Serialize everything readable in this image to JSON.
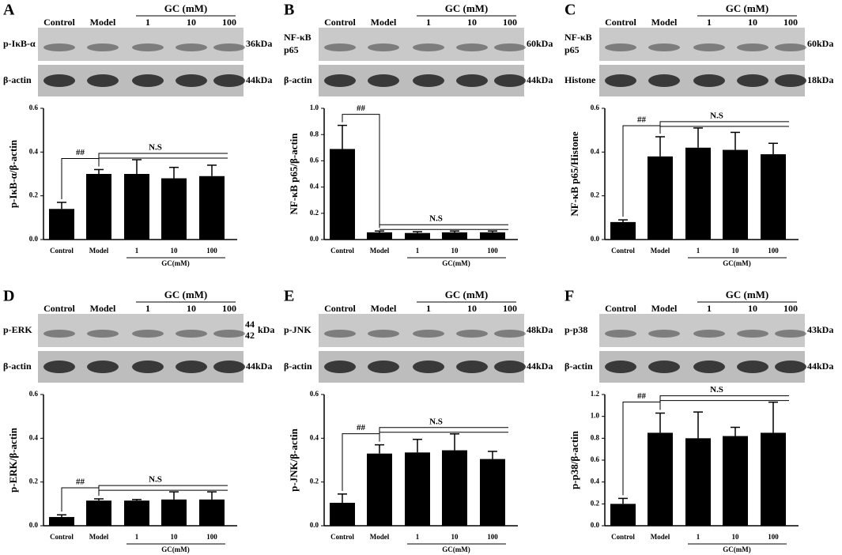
{
  "chart_data": [
    {
      "type": "bar",
      "panel": "A",
      "ylabel": "p-IκB-α/β-actin",
      "blot": {
        "lanes": [
          "Control",
          "Model",
          "1",
          "10",
          "100"
        ],
        "group_label": "GC (mM)",
        "rows": [
          {
            "protein": [
              "p-IκB-α"
            ],
            "size": [
              "36kDa"
            ]
          },
          {
            "protein": [
              "β-actin"
            ],
            "size": [
              "44kDa"
            ]
          }
        ]
      },
      "categories": [
        "Control",
        "Model",
        "1",
        "10",
        "100"
      ],
      "group_label": "GC(mM)",
      "values": [
        0.14,
        0.3,
        0.3,
        0.28,
        0.29
      ],
      "errors": [
        0.03,
        0.02,
        0.065,
        0.05,
        0.05
      ],
      "color": "#000000",
      "ylim": [
        0,
        0.6
      ],
      "yticks": [
        {
          "value": 0,
          "label": "0.0"
        },
        0.2,
        0.4,
        0.6
      ],
      "annotations": [
        "##",
        "N.S"
      ]
    },
    {
      "type": "bar",
      "panel": "B",
      "ylabel": "NF-κB p65/β-actin",
      "blot": {
        "lanes": [
          "Control",
          "Model",
          "1",
          "10",
          "100"
        ],
        "group_label": "GC (mM)",
        "rows": [
          {
            "protein": [
              "NF-κB",
              "p65"
            ],
            "size": [
              "60kDa"
            ]
          },
          {
            "protein": [
              "β-actin"
            ],
            "size": [
              "44kDa"
            ]
          }
        ]
      },
      "categories": [
        "Control",
        "Model",
        "1",
        "10",
        "100"
      ],
      "group_label": "GC(mM)",
      "values": [
        0.69,
        0.055,
        0.05,
        0.055,
        0.055
      ],
      "errors": [
        0.18,
        0.01,
        0.01,
        0.01,
        0.01
      ],
      "color": "#000000",
      "ylim": [
        0,
        1.0
      ],
      "yticks": [
        {
          "value": 0,
          "label": "0.0"
        },
        0.2,
        0.4,
        0.6,
        0.8,
        {
          "value": 1,
          "label": "1.0"
        }
      ],
      "annotations": [
        "##",
        "N.S"
      ]
    },
    {
      "type": "bar",
      "panel": "C",
      "ylabel": "NF-κB p65/Histone",
      "blot": {
        "lanes": [
          "Control",
          "Model",
          "1",
          "10",
          "100"
        ],
        "group_label": "GC (mM)",
        "rows": [
          {
            "protein": [
              "NF-κB",
              "p65"
            ],
            "size": [
              "60kDa"
            ]
          },
          {
            "protein": [
              "Histone"
            ],
            "size": [
              "18kDa"
            ]
          }
        ]
      },
      "categories": [
        "Control",
        "Model",
        "1",
        "10",
        "100"
      ],
      "group_label": "GC(mM)",
      "values": [
        0.08,
        0.38,
        0.42,
        0.41,
        0.39
      ],
      "errors": [
        0.01,
        0.09,
        0.09,
        0.08,
        0.05
      ],
      "color": "#000000",
      "ylim": [
        0,
        0.6
      ],
      "yticks": [
        {
          "value": 0,
          "label": "0.0"
        },
        0.2,
        0.4,
        0.6
      ],
      "annotations": [
        "##",
        "N.S"
      ]
    },
    {
      "type": "bar",
      "panel": "D",
      "ylabel": "p-ERK/β-actin",
      "blot": {
        "lanes": [
          "Control",
          "Model",
          "1",
          "10",
          "100"
        ],
        "group_label": "GC (mM)",
        "rows": [
          {
            "protein": [
              "p-ERK"
            ],
            "size": [
              "44",
              "42",
              "kDa"
            ]
          },
          {
            "protein": [
              "β-actin"
            ],
            "size": [
              "44kDa"
            ]
          }
        ]
      },
      "categories": [
        "Control",
        "Model",
        "1",
        "10",
        "100"
      ],
      "group_label": "GC(mM)",
      "values": [
        0.04,
        0.115,
        0.115,
        0.12,
        0.12
      ],
      "errors": [
        0.01,
        0.008,
        0.005,
        0.035,
        0.035
      ],
      "color": "#000000",
      "ylim": [
        0,
        0.6
      ],
      "yticks": [
        {
          "value": 0,
          "label": "0.0"
        },
        0.2,
        0.4,
        0.6
      ],
      "annotations": [
        "##",
        "N.S"
      ]
    },
    {
      "type": "bar",
      "panel": "E",
      "ylabel": "p-JNK/β-actin",
      "blot": {
        "lanes": [
          "Control",
          "Model",
          "1",
          "10",
          "100"
        ],
        "group_label": "GC (mM)",
        "rows": [
          {
            "protein": [
              "p-JNK"
            ],
            "size": [
              "48kDa"
            ]
          },
          {
            "protein": [
              "β-actin"
            ],
            "size": [
              "44kDa"
            ]
          }
        ]
      },
      "categories": [
        "Control",
        "Model",
        "1",
        "10",
        "100"
      ],
      "group_label": "GC(mM)",
      "values": [
        0.105,
        0.33,
        0.335,
        0.345,
        0.305
      ],
      "errors": [
        0.04,
        0.04,
        0.06,
        0.075,
        0.035
      ],
      "color": "#000000",
      "ylim": [
        0,
        0.6
      ],
      "yticks": [
        {
          "value": 0,
          "label": "0.0"
        },
        0.2,
        0.4,
        0.6
      ],
      "annotations": [
        "##",
        "N.S"
      ]
    },
    {
      "type": "bar",
      "panel": "F",
      "ylabel": "p-p38/β-actin",
      "blot": {
        "lanes": [
          "Control",
          "Model",
          "1",
          "10",
          "100"
        ],
        "group_label": "GC (mM)",
        "rows": [
          {
            "protein": [
              "p-p38"
            ],
            "size": [
              "43kDa"
            ]
          },
          {
            "protein": [
              "β-actin"
            ],
            "size": [
              "44kDa"
            ]
          }
        ]
      },
      "categories": [
        "Control",
        "Model",
        "1",
        "10",
        "100"
      ],
      "group_label": "GC(mM)",
      "values": [
        0.2,
        0.85,
        0.8,
        0.82,
        0.85
      ],
      "errors": [
        0.05,
        0.18,
        0.24,
        0.08,
        0.28
      ],
      "color": "#000000",
      "ylim": [
        0,
        1.2
      ],
      "yticks": [
        {
          "value": 0,
          "label": "0.0"
        },
        0.2,
        0.4,
        0.6,
        0.8,
        {
          "value": 1,
          "label": "1.0"
        },
        1.2
      ],
      "annotations": [
        "##",
        "N.S"
      ]
    }
  ]
}
